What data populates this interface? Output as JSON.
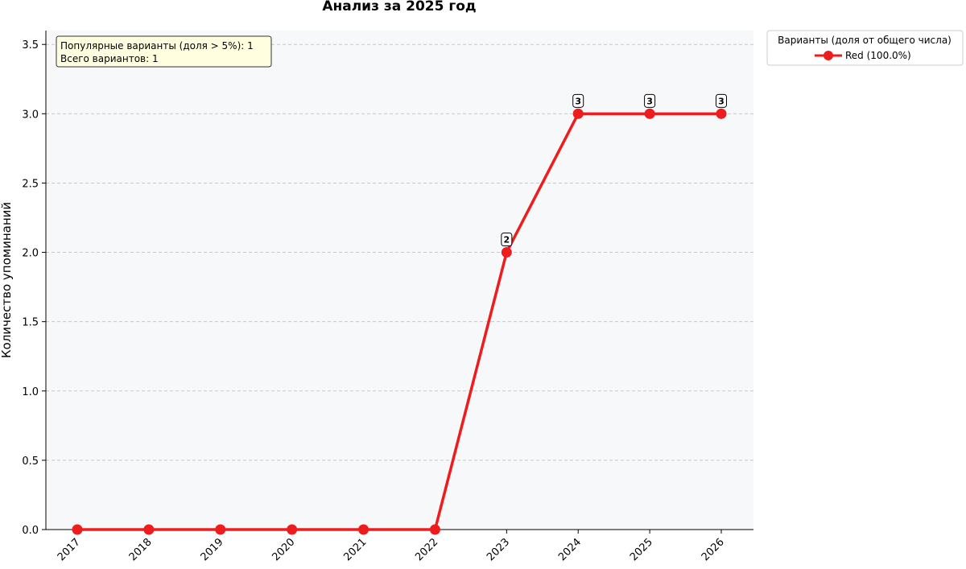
{
  "chart_data": {
    "type": "line",
    "title": "Анализ за 2025 год",
    "xlabel": "",
    "ylabel": "Количество упоминаний",
    "categories": [
      "2017",
      "2018",
      "2019",
      "2020",
      "2021",
      "2022",
      "2023",
      "2024",
      "2025",
      "2026"
    ],
    "series": [
      {
        "name": "Red (100.0%)",
        "color": "#ee1c1c",
        "values": [
          0,
          0,
          0,
          0,
          0,
          0,
          2,
          3,
          3,
          3
        ],
        "data_labels": [
          "",
          "",
          "",
          "",
          "",
          "",
          "2",
          "3",
          "3",
          "3"
        ]
      }
    ],
    "ylim": [
      0,
      3.6
    ],
    "yticks": [
      "0.0",
      "0.5",
      "1.0",
      "1.5",
      "2.0",
      "2.5",
      "3.0",
      "3.5"
    ],
    "grid": "horizontal dashed",
    "legend_title": "Варианты (доля от общего числа)",
    "legend_position": "outside top-right",
    "info_box": [
      "Популярные варианты (доля > 5%): 1",
      "Всего вариантов: 1"
    ]
  }
}
